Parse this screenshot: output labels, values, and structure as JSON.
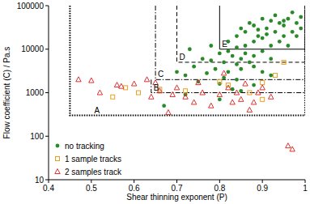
{
  "chart_data": {
    "type": "scatter",
    "x_label": "Shear thinning exponent (P)",
    "y_label": "Flow coefficient (C) / Pa.s",
    "log": "y",
    "legend": "lower left",
    "grid": false,
    "xlim": [
      0.4,
      1
    ],
    "xticks": [
      0.4,
      0.5,
      0.6,
      0.7,
      0.8,
      0.9,
      1
    ],
    "ylim": [
      10,
      100000
    ],
    "yticks": [
      10,
      100,
      1000,
      10000,
      100000
    ],
    "regions": [
      {
        "label": "A",
        "xlim": [
          0.45,
          1
        ],
        "ylim": [
          300,
          100000
        ],
        "line_style": "dotted"
      },
      {
        "label": "B",
        "xlim": [
          0.64,
          1
        ],
        "ylim": [
          1000,
          2000
        ],
        "line_style": "dashdot"
      },
      {
        "label": "C",
        "xlim": [
          0.65,
          1
        ],
        "ylim": [
          2000,
          100000
        ],
        "line_style": "dashdot"
      },
      {
        "label": "D",
        "xlim": [
          0.7,
          1
        ],
        "ylim": [
          5000,
          100000
        ],
        "line_style": "dashed"
      },
      {
        "label": "E",
        "xlim": [
          0.8,
          1
        ],
        "ylim": [
          10000,
          100000
        ],
        "line_style": "solid"
      }
    ],
    "series": [
      {
        "name": "no tracking",
        "color": "#2a8a2a",
        "marker": "circle",
        "x": [
          0.82,
          0.84,
          0.85,
          0.86,
          0.87,
          0.88,
          0.89,
          0.9,
          0.91,
          0.92,
          0.93,
          0.94,
          0.95,
          0.96,
          0.97,
          0.98,
          0.99,
          0.93,
          0.95,
          0.97,
          0.88,
          0.9,
          0.92,
          0.94,
          0.96,
          0.98,
          0.86,
          0.84,
          0.91,
          0.95,
          0.89,
          0.99,
          0.7,
          0.72,
          0.74,
          0.76,
          0.78,
          0.8,
          0.81,
          0.82,
          0.83,
          0.84,
          0.85,
          0.86,
          0.87,
          0.88,
          0.9,
          0.92,
          0.79,
          0.77,
          0.82,
          0.85,
          0.88,
          0.81,
          0.73,
          0.78,
          0.75,
          0.84,
          0.8,
          0.9,
          0.83,
          0.67,
          0.72,
          0.8,
          0.85,
          0.88,
          0.92
        ],
        "values": [
          15000,
          20000,
          30000,
          25000,
          40000,
          35000,
          20000,
          50000,
          30000,
          45000,
          60000,
          40000,
          35000,
          50000,
          70000,
          40000,
          30000,
          25000,
          20000,
          25000,
          15000,
          18000,
          12000,
          15000,
          12000,
          20000,
          12000,
          11000,
          22000,
          45000,
          28000,
          55000,
          3000,
          2500,
          4000,
          6000,
          5500,
          8000,
          5000,
          9000,
          7000,
          4500,
          6000,
          8000,
          5000,
          7000,
          9000,
          6000,
          3500,
          2800,
          3000,
          3500,
          4000,
          2200,
          10000,
          12000,
          1800,
          2000,
          1600,
          3000,
          1200,
          500,
          900,
          700,
          1100,
          1500,
          2500
        ]
      },
      {
        "name": "1 sample tracks",
        "color": "#e8a020",
        "marker": "square",
        "x": [
          0.55,
          0.58,
          0.61,
          0.66,
          0.72,
          0.8,
          0.82,
          0.87,
          0.9,
          0.93,
          0.95,
          0.9
        ],
        "values": [
          800,
          1300,
          1000,
          1200,
          1100,
          1800,
          1500,
          1000,
          700,
          2500,
          5000,
          1700
        ]
      },
      {
        "name": "2 samples track",
        "color": "#e03030",
        "marker": "triangle",
        "x": [
          0.47,
          0.5,
          0.52,
          0.56,
          0.57,
          0.6,
          0.63,
          0.64,
          0.66,
          0.68,
          0.7,
          0.72,
          0.74,
          0.75,
          0.76,
          0.78,
          0.8,
          0.81,
          0.82,
          0.83,
          0.84,
          0.85,
          0.86,
          0.87,
          0.88,
          0.89,
          0.9,
          0.92,
          0.96,
          0.97,
          0.65,
          0.69
        ],
        "values": [
          2000,
          1900,
          1000,
          1500,
          1400,
          1600,
          2000,
          800,
          1100,
          350,
          1300,
          800,
          600,
          1700,
          1000,
          500,
          900,
          2800,
          1300,
          600,
          1000,
          700,
          1600,
          400,
          600,
          1000,
          1300,
          800,
          60,
          50,
          1700,
          900
        ]
      }
    ]
  }
}
